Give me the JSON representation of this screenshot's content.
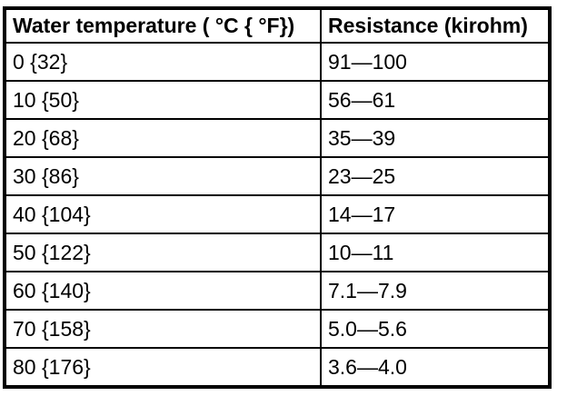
{
  "colors": {
    "background": "#ffffff",
    "border": "#000000",
    "text": "#000000"
  },
  "table": {
    "columns": [
      {
        "label": "Water temperature ( °C { °F})"
      },
      {
        "label": "Resistance (kirohm)"
      }
    ],
    "rows": [
      {
        "temperature": "0 {32}",
        "resistance": "91—100"
      },
      {
        "temperature": "10 {50}",
        "resistance": "56—61"
      },
      {
        "temperature": "20 {68}",
        "resistance": "35—39"
      },
      {
        "temperature": "30 {86}",
        "resistance": "23—25"
      },
      {
        "temperature": "40 {104}",
        "resistance": "14—17"
      },
      {
        "temperature": "50 {122}",
        "resistance": "10—11"
      },
      {
        "temperature": "60 {140}",
        "resistance": "7.1—7.9"
      },
      {
        "temperature": "70 {158}",
        "resistance": "5.0—5.6"
      },
      {
        "temperature": "80 {176}",
        "resistance": "3.6—4.0"
      }
    ]
  }
}
